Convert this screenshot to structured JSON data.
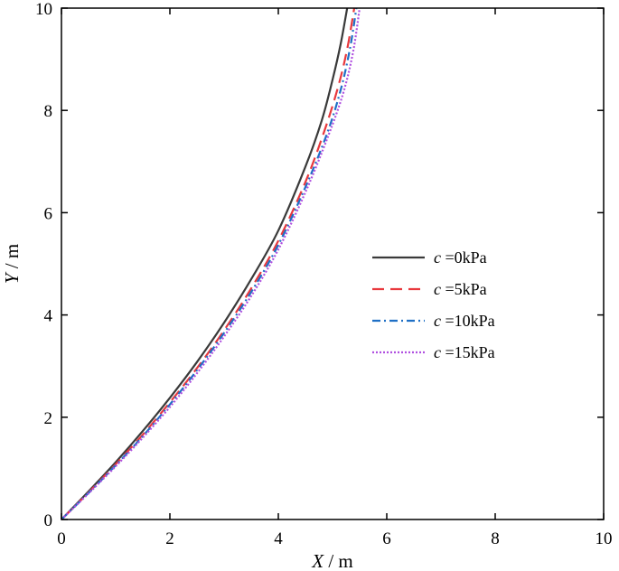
{
  "chart_data": {
    "type": "line",
    "xlabel_var": "X",
    "xlabel_unit": " / m",
    "ylabel_var": "Y",
    "ylabel_unit": " / m",
    "xlim": [
      0,
      10
    ],
    "ylim": [
      0,
      10
    ],
    "xticks": [
      "0",
      "2",
      "4",
      "6",
      "8",
      "10"
    ],
    "yticks": [
      "0",
      "2",
      "4",
      "6",
      "8",
      "10"
    ],
    "grid": false,
    "legend_position": "right",
    "series": [
      {
        "name": "c =0kPa",
        "name_var": "c",
        "name_rest": " =0kPa",
        "color": "#3a3a3a",
        "dash": "solid",
        "x": [
          0,
          0.5,
          1.0,
          1.5,
          2.0,
          2.5,
          3.0,
          3.5,
          4.0,
          4.5,
          4.8,
          5.0,
          5.15,
          5.27
        ],
        "y": [
          0,
          0.55,
          1.12,
          1.73,
          2.38,
          3.08,
          3.85,
          4.7,
          5.65,
          6.9,
          7.8,
          8.6,
          9.3,
          10.0
        ]
      },
      {
        "name": "c =5kPa",
        "name_var": "c",
        "name_rest": " =5kPa",
        "color": "#e8383d",
        "dash": "dashed",
        "x": [
          0,
          0.5,
          1.0,
          1.5,
          2.0,
          2.5,
          3.0,
          3.5,
          4.0,
          4.5,
          4.85,
          5.1,
          5.27,
          5.4
        ],
        "y": [
          0,
          0.53,
          1.08,
          1.66,
          2.29,
          2.96,
          3.7,
          4.52,
          5.45,
          6.6,
          7.6,
          8.45,
          9.2,
          10.0
        ]
      },
      {
        "name": "c =10kPa",
        "name_var": "c",
        "name_rest": " =10kPa",
        "color": "#1f6fc5",
        "dash": "dashdot",
        "x": [
          0,
          0.5,
          1.0,
          1.5,
          2.0,
          2.5,
          3.0,
          3.5,
          4.0,
          4.5,
          4.9,
          5.15,
          5.32,
          5.44
        ],
        "y": [
          0,
          0.52,
          1.06,
          1.63,
          2.25,
          2.92,
          3.65,
          4.45,
          5.37,
          6.5,
          7.55,
          8.4,
          9.2,
          10.0
        ]
      },
      {
        "name": "c =15kPa",
        "name_var": "c",
        "name_rest": " =15kPa",
        "color": "#b050e0",
        "dash": "dotted",
        "x": [
          0,
          0.5,
          1.0,
          1.5,
          2.0,
          2.5,
          3.0,
          3.5,
          4.0,
          4.5,
          4.92,
          5.2,
          5.38,
          5.5
        ],
        "y": [
          0,
          0.51,
          1.04,
          1.6,
          2.2,
          2.86,
          3.58,
          4.37,
          5.28,
          6.4,
          7.5,
          8.35,
          9.15,
          10.0
        ]
      }
    ]
  }
}
